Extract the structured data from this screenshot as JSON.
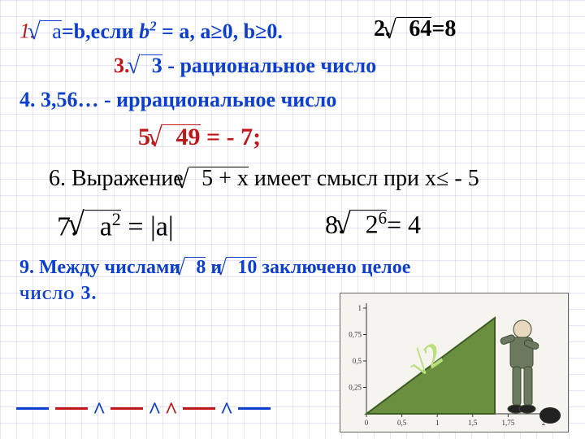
{
  "items": {
    "i1": {
      "num": "1.",
      "rad": "a",
      "after": "=b,если ",
      "b2": "b",
      "b2sup": "2",
      "tail": " = a, a≥0, b≥0.",
      "color_num": "#c0181a",
      "color_text": "#0c3ecf"
    },
    "i2": {
      "num": "2.",
      "rad": "64",
      "eq": "=8",
      "color": "#000000"
    },
    "i3": {
      "num": "3.",
      "rad": "3",
      "tail": " - рациональное  число",
      "color_num": "#c0181a",
      "color_text": "#0c3ecf"
    },
    "i4": {
      "text": "4. 3,56… - иррациональное  число",
      "color": "#0c3ecf"
    },
    "i5": {
      "num": "5.",
      "rad": "49",
      "tail": "  =   - 7;",
      "color": "#c0181a"
    },
    "i6": {
      "pre": "6. Выражение  ",
      "rad": "5 + x",
      "post": "  имеет смысл  при x≤ - 5",
      "color": "#000000"
    },
    "i7": {
      "num": "7.  ",
      "rad_inner_a": "a",
      "rad_inner_sup": "2",
      "eq": " = |a|",
      "color": "#000000"
    },
    "i8": {
      "num": "8.  ",
      "rad_inner_a": "2",
      "rad_inner_sup": "6",
      "eq": "= 4",
      "color": "#000000"
    },
    "i9": {
      "pre": "9. Между  числами ",
      "r1": "8",
      "mid": "  и  ",
      "r2": "10",
      "post": "  заключено  целое",
      "line2": "число  3.",
      "color": "#0c3ecf"
    }
  },
  "answers": {
    "segs": [
      {
        "type": "line",
        "color": "#0c3ecf"
      },
      {
        "type": "line",
        "color": "#c0181a"
      },
      {
        "type": "caret",
        "color": "#0c3ecf",
        "g": "^"
      },
      {
        "type": "line",
        "color": "#c0181a"
      },
      {
        "type": "caret",
        "color": "#0c3ecf",
        "g": "^"
      },
      {
        "type": "caret",
        "color": "#c0181a",
        "g": "^"
      },
      {
        "type": "line",
        "color": "#c0181a"
      },
      {
        "type": "caret",
        "color": "#0c3ecf",
        "g": "^"
      },
      {
        "type": "line",
        "color": "#0c3ecf"
      }
    ]
  },
  "illustration": {
    "bg": "#f6f4ee",
    "triangle_fill": "#6a8f3f",
    "sqrt2_label": "√2",
    "sqrt2_color": "#4b7121",
    "axis_color": "#333333",
    "xticks": [
      "0",
      "0,5",
      "1",
      "1,5",
      "1,75",
      "2"
    ],
    "yticks": [
      "0,25",
      "0,5",
      "0,75",
      "1"
    ],
    "figure_color": "#6b7a5e",
    "bag_color": "#222222"
  },
  "fontsizes": {
    "main": 24,
    "large": 30,
    "huge": 34
  }
}
